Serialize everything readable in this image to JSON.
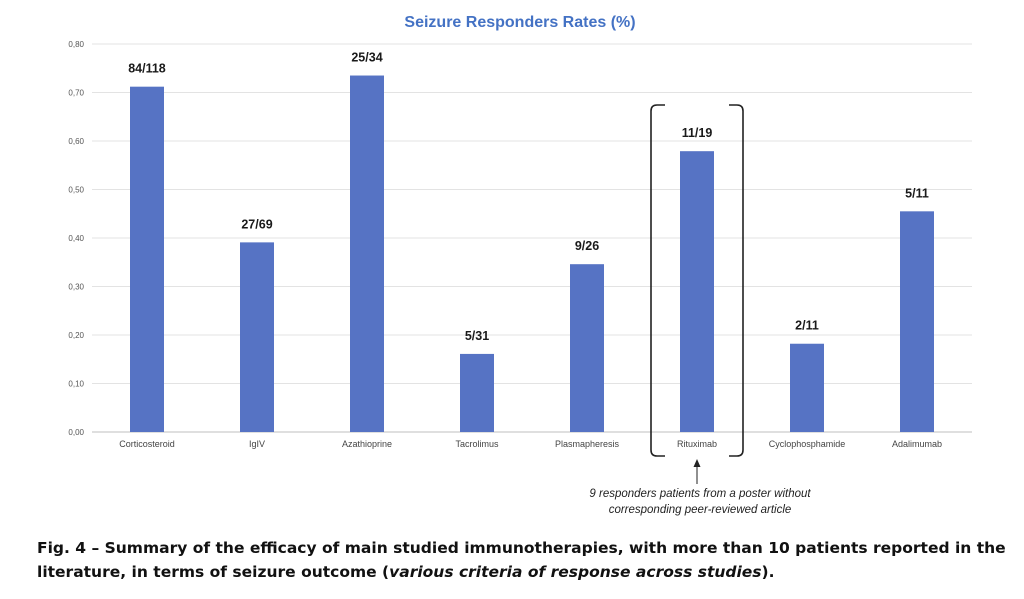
{
  "chart_data": {
    "type": "bar",
    "title": "Seizure Responders Rates (%)",
    "categories": [
      "Corticosteroid",
      "IgIV",
      "Azathioprine",
      "Tacrolimus",
      "Plasmapheresis",
      "Rituximab",
      "Cyclophosphamide",
      "Adalimumab"
    ],
    "values": [
      0.712,
      0.391,
      0.735,
      0.161,
      0.346,
      0.579,
      0.182,
      0.455
    ],
    "data_labels": [
      "84/118",
      "27/69",
      "25/34",
      "5/31",
      "9/26",
      "11/19",
      "2/11",
      "5/11"
    ],
    "yticks": [
      "0,00",
      "0,10",
      "0,20",
      "0,30",
      "0,40",
      "0,50",
      "0,60",
      "0,70",
      "0,80"
    ],
    "ylim": [
      0,
      0.8
    ],
    "grid": true,
    "legend": "none",
    "bar_color": "#5673c4",
    "title_color": "#4472c4",
    "annotation": {
      "target_category": "Rituximab",
      "line1": "9 responders patients from a poster without",
      "line2": "corresponding peer-reviewed article"
    }
  },
  "caption": {
    "lead": "Fig. 4 – Summary of the efficacy of main studied immunotherapies, with more than 10 patients reported in the literature, in terms of seizure outcome (",
    "italic": "various criteria of response across studies",
    "tail": ")."
  }
}
